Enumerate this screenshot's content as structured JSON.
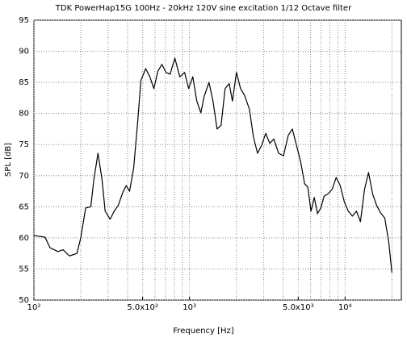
{
  "chart_data": {
    "type": "line",
    "title": "TDK PowerHap15G 100Hz - 20kHz 120V sine excitation 1/12 Octave filter",
    "x_label": "Frequency [Hz]",
    "y_label": "SPL [dB]",
    "x_scale": "log",
    "grid": true,
    "color": "#000000",
    "xlim": [
      100,
      23000
    ],
    "ylim": [
      50,
      95
    ],
    "xticks": [
      {
        "value": 100,
        "label": "10²"
      },
      {
        "value": 500,
        "label": "5.0x10²"
      },
      {
        "value": 1000,
        "label": "10³"
      },
      {
        "value": 5000,
        "label": "5.0x10³"
      },
      {
        "value": 10000,
        "label": "10⁴"
      }
    ],
    "xgrid": [
      100,
      200,
      300,
      400,
      500,
      600,
      700,
      800,
      900,
      1000,
      2000,
      3000,
      4000,
      5000,
      6000,
      7000,
      8000,
      9000,
      10000,
      20000
    ],
    "yticks": [
      50,
      55,
      60,
      65,
      70,
      75,
      80,
      85,
      90,
      95
    ],
    "x": [
      100,
      118,
      127,
      143,
      154,
      169,
      189,
      200,
      215,
      232,
      243,
      258,
      274,
      287,
      309,
      328,
      348,
      374,
      392,
      412,
      438,
      465,
      487,
      523,
      556,
      590,
      627,
      665,
      706,
      750,
      805,
      866,
      930,
      988,
      1050,
      1114,
      1183,
      1241,
      1334,
      1416,
      1503,
      1596,
      1694,
      1799,
      1888,
      2004,
      2128,
      2259,
      2427,
      2577,
      2738,
      2909,
      3090,
      3281,
      3483,
      3741,
      4018,
      4315,
      4581,
      4870,
      5176,
      5495,
      5754,
      6039,
      6339,
      6653,
      6982,
      7328,
      7780,
      8260,
      8770,
      9311,
      9886,
      10496,
      11143,
      11830,
      12560,
      13335,
      14158,
      15031,
      15959,
      16943,
      17989,
      19099,
      20000
    ],
    "values": [
      60.4,
      60.1,
      58.4,
      57.8,
      58.1,
      57.1,
      57.5,
      60,
      64.8,
      65,
      69.4,
      73.6,
      69.4,
      64.3,
      63,
      64.3,
      65.2,
      67.4,
      68.4,
      67.5,
      71.3,
      78.8,
      85.3,
      87.2,
      85.9,
      84,
      86.8,
      87.9,
      86.6,
      86.3,
      88.9,
      85.9,
      86.6,
      84,
      85.9,
      82,
      80.1,
      82.7,
      85,
      82,
      77.5,
      78.1,
      84,
      84.8,
      82,
      86.6,
      84,
      82.9,
      80.7,
      76.2,
      73.6,
      74.9,
      76.8,
      75.2,
      75.9,
      73.6,
      73.2,
      76.5,
      77.5,
      74.9,
      72.3,
      68.7,
      68.2,
      64.3,
      66.5,
      63.9,
      64.8,
      66.7,
      67.1,
      67.8,
      69.7,
      68.4,
      65.8,
      64.3,
      63.5,
      64.3,
      62.6,
      67.8,
      70.5,
      67.1,
      65.2,
      64,
      63.2,
      59.3,
      54.4
    ]
  }
}
